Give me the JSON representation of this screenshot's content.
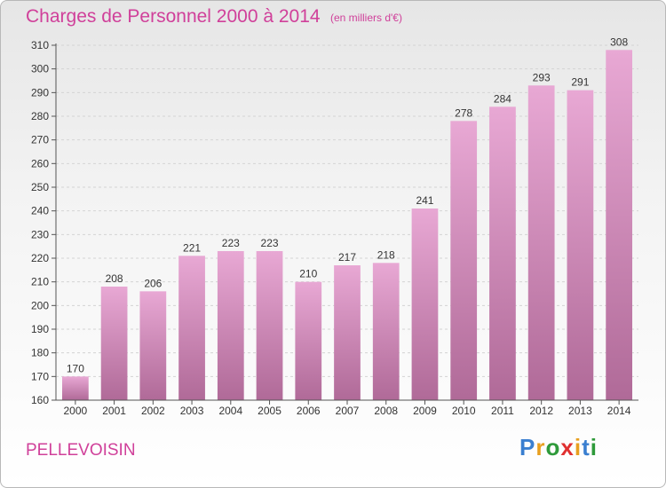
{
  "title": "Charges de Personnel 2000 à 2014",
  "subtitle": "(en milliers d'€)",
  "commune": "PELLEVOISIN",
  "logo": {
    "p": "P",
    "r": "r",
    "o": "o",
    "x": "x",
    "i1": "i",
    "t": "t",
    "i2": "i"
  },
  "colors": {
    "title": "#d0409a",
    "bar_top": "#e8a8d4",
    "bar_bottom": "#b06a98"
  },
  "chart_data": {
    "type": "bar",
    "title": "Charges de Personnel 2000 à 2014",
    "subtitle": "(en milliers d'€)",
    "categories": [
      "2000",
      "2001",
      "2002",
      "2003",
      "2004",
      "2005",
      "2006",
      "2007",
      "2008",
      "2009",
      "2010",
      "2011",
      "2012",
      "2013",
      "2014"
    ],
    "values": [
      170,
      208,
      206,
      221,
      223,
      223,
      210,
      217,
      218,
      241,
      278,
      284,
      293,
      291,
      308
    ],
    "ylim": [
      160,
      310
    ],
    "yticks": [
      160,
      170,
      180,
      190,
      200,
      210,
      220,
      230,
      240,
      250,
      260,
      270,
      280,
      290,
      300,
      310
    ],
    "grid": true,
    "xlabel": "",
    "ylabel": ""
  }
}
